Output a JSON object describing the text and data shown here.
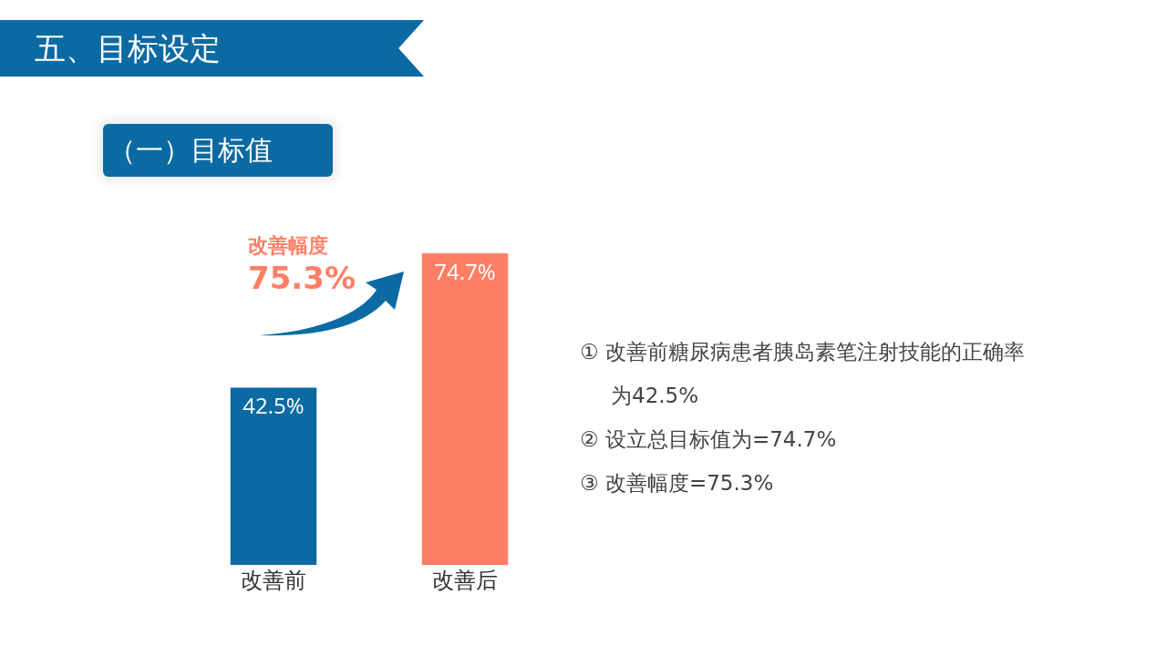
{
  "chart_data": {
    "type": "bar",
    "title": "五、目标设定",
    "subtitle": "（一）目标值",
    "categories": [
      "改善前",
      "改善后"
    ],
    "values": [
      42.5,
      74.7
    ],
    "colors": [
      "#0b6aa2",
      "#ff7f66"
    ],
    "value_labels": [
      "42.5%",
      "74.7%"
    ],
    "annotations": [
      "改善幅度",
      "75.3%",
      "① 改善前糖尿病患者胰岛素笔注射技能的正确率为42.5%",
      "② 设立总目标值为=74.7%",
      "③ 改善幅度=75.3%"
    ],
    "grid": false,
    "legend": false
  }
}
